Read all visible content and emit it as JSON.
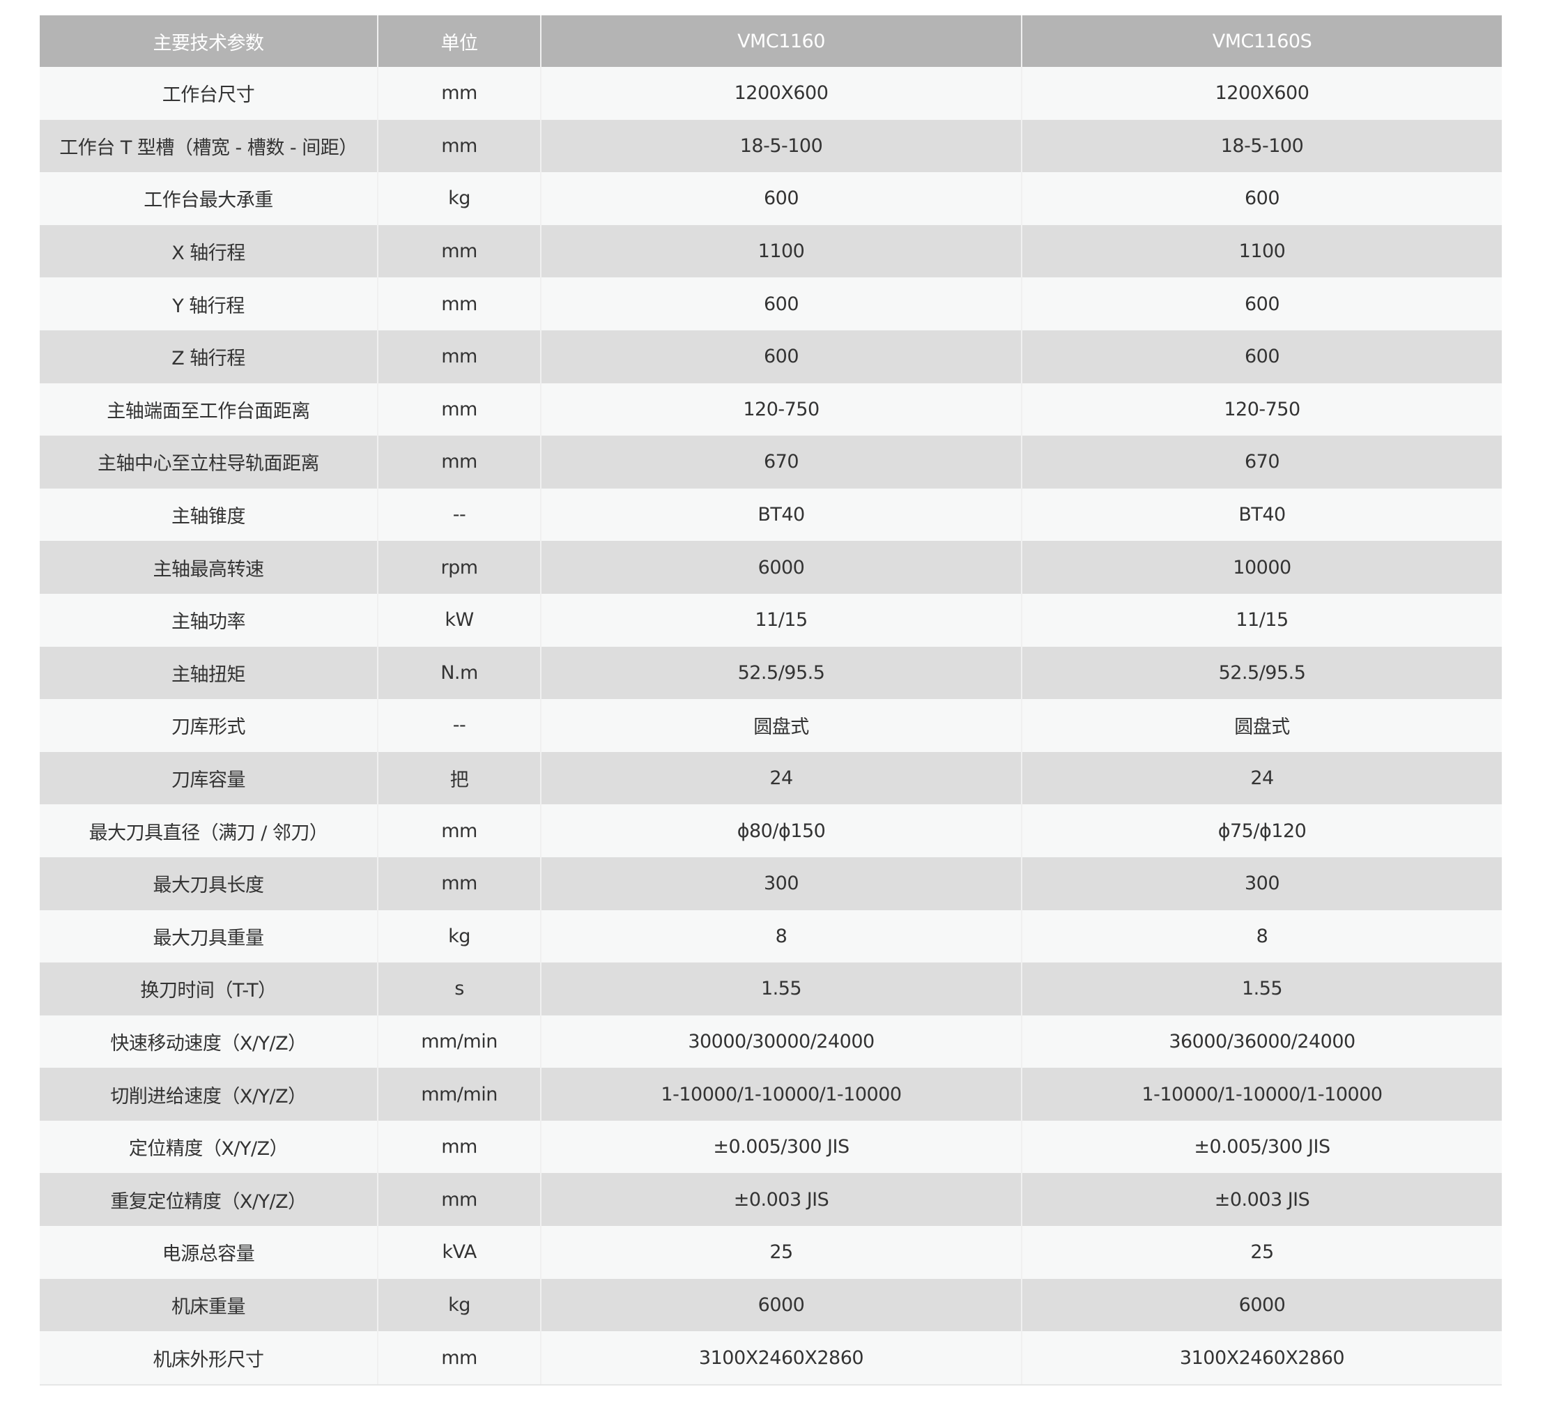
{
  "table": {
    "headers": [
      "主要技术参数",
      "单位",
      "VMC1160",
      "VMC1160S"
    ],
    "rows": [
      [
        "工作台尺寸",
        "mm",
        "1200X600",
        "1200X600"
      ],
      [
        "工作台 T 型槽（槽宽 - 槽数 - 间距）",
        "mm",
        "18-5-100",
        "18-5-100"
      ],
      [
        "工作台最大承重",
        "kg",
        "600",
        "600"
      ],
      [
        "X 轴行程",
        "mm",
        "1100",
        "1100"
      ],
      [
        "Y 轴行程",
        "mm",
        "600",
        "600"
      ],
      [
        "Z 轴行程",
        "mm",
        "600",
        "600"
      ],
      [
        "主轴端面至工作台面距离",
        "mm",
        "120-750",
        "120-750"
      ],
      [
        "主轴中心至立柱导轨面距离",
        "mm",
        "670",
        "670"
      ],
      [
        "主轴锥度",
        "--",
        "BT40",
        "BT40"
      ],
      [
        "主轴最高转速",
        "rpm",
        "6000",
        "10000"
      ],
      [
        "主轴功率",
        "kW",
        "11/15",
        "11/15"
      ],
      [
        "主轴扭矩",
        "N.m",
        "52.5/95.5",
        "52.5/95.5"
      ],
      [
        "刀库形式",
        "--",
        "圆盘式",
        "圆盘式"
      ],
      [
        "刀库容量",
        "把",
        "24",
        "24"
      ],
      [
        "最大刀具直径（满刀 / 邻刀）",
        "mm",
        "ϕ80/ϕ150",
        "ϕ75/ϕ120"
      ],
      [
        "最大刀具长度",
        "mm",
        "300",
        "300"
      ],
      [
        "最大刀具重量",
        "kg",
        "8",
        "8"
      ],
      [
        "换刀时间（T-T）",
        "s",
        "1.55",
        "1.55"
      ],
      [
        "快速移动速度（X/Y/Z）",
        "mm/min",
        "30000/30000/24000",
        "36000/36000/24000"
      ],
      [
        "切削进给速度（X/Y/Z）",
        "mm/min",
        "1-10000/1-10000/1-10000",
        "1-10000/1-10000/1-10000"
      ],
      [
        "定位精度（X/Y/Z）",
        "mm",
        "±0.005/300 JIS",
        "±0.005/300 JIS"
      ],
      [
        "重复定位精度（X/Y/Z）",
        "mm",
        "±0.003 JIS",
        "±0.003 JIS"
      ],
      [
        "电源总容量",
        "kVA",
        "25",
        "25"
      ],
      [
        "机床重量",
        "kg",
        "6000",
        "6000"
      ],
      [
        "机床外形尺寸",
        "mm",
        "3100X2460X2860",
        "3100X2460X2860"
      ]
    ]
  },
  "colors": {
    "header_bg": "#b4b4b4",
    "row_light": "#f7f8f8",
    "row_dark": "#dddddd",
    "text": "#333333"
  }
}
